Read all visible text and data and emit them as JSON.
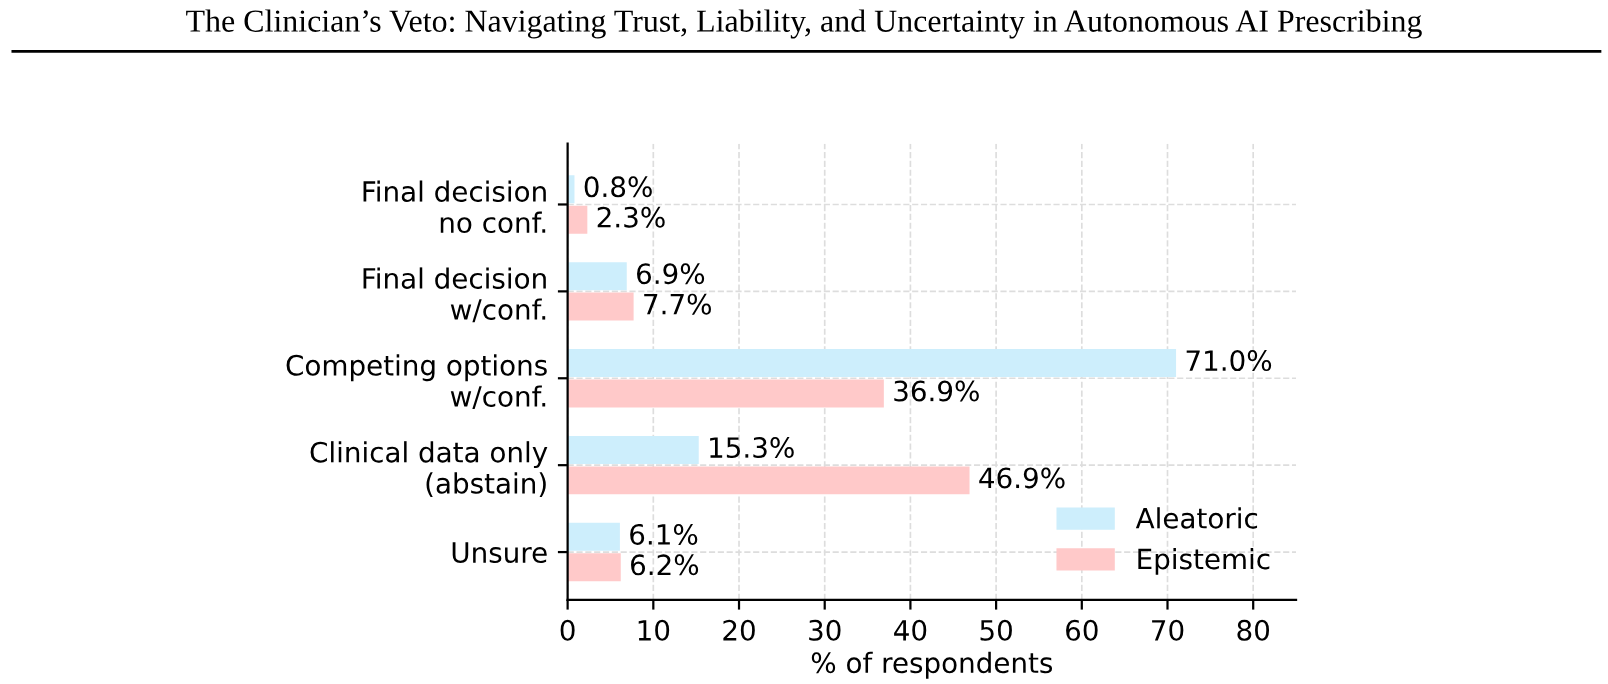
{
  "chart_data": {
    "type": "bar",
    "orientation": "horizontal",
    "title": "The Clinician’s Veto: Navigating Trust, Liability, and Uncertainty in Autonomous AI Prescribing",
    "categories": [
      "Final decision\nno conf.",
      "Final decision\nw/conf.",
      "Competing options\nw/conf.",
      "Clinical data only\n(abstain)",
      "Unsure"
    ],
    "series": [
      {
        "name": "Aleatoric",
        "color": "#cdeefc",
        "values": [
          0.8,
          6.9,
          71.0,
          15.3,
          6.1
        ],
        "value_labels": [
          "0.8%",
          "6.9%",
          "71.0%",
          "15.3%",
          "6.1%"
        ]
      },
      {
        "name": "Epistemic",
        "color": "#ffc9c9",
        "values": [
          2.3,
          7.7,
          36.9,
          46.9,
          6.2
        ],
        "value_labels": [
          "2.3%",
          "7.7%",
          "36.9%",
          "46.9%",
          "6.2%"
        ]
      }
    ],
    "xlabel": "% of respondents",
    "xlim": [
      0,
      85
    ],
    "xticks": [
      0,
      10,
      20,
      30,
      40,
      50,
      60,
      70,
      80
    ],
    "grid": true,
    "legend": "bottom right"
  }
}
